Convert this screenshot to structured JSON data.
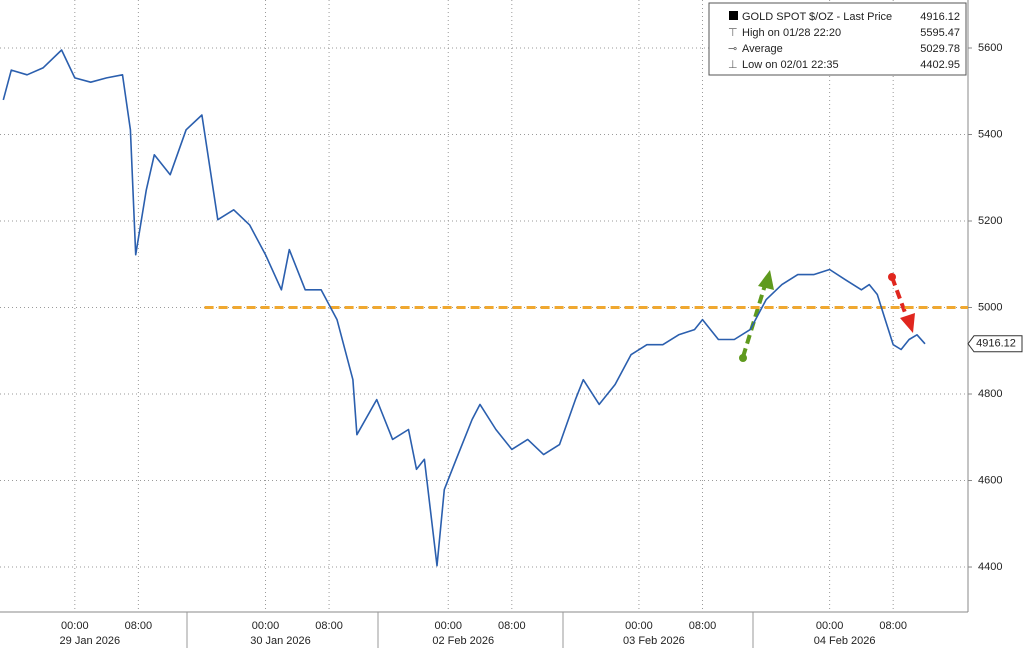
{
  "chart_data": {
    "type": "line",
    "x": [
      "2026-01-28 15:00",
      "2026-01-28 16:00",
      "2026-01-28 18:00",
      "2026-01-28 20:00",
      "2026-01-28 22:20",
      "2026-01-29 00:00",
      "2026-01-29 02:00",
      "2026-01-29 04:00",
      "2026-01-29 06:00",
      "2026-01-29 07:00",
      "2026-01-29 07:40",
      "2026-01-29 09:00",
      "2026-01-29 10:00",
      "2026-01-29 12:00",
      "2026-01-29 14:00",
      "2026-01-29 16:00",
      "2026-01-29 18:00",
      "2026-01-29 20:00",
      "2026-01-29 22:00",
      "2026-01-30 00:00",
      "2026-01-30 02:00",
      "2026-01-30 03:00",
      "2026-01-30 05:00",
      "2026-01-30 07:00",
      "2026-01-30 09:00",
      "2026-01-30 11:00",
      "2026-01-30 11:30",
      "2026-01-30 14:00",
      "2026-01-30 16:00",
      "2026-02-01 19:00",
      "2026-02-01 20:00",
      "2026-02-01 21:00",
      "2026-02-01 22:35",
      "2026-02-01 23:30",
      "2026-02-02 01:00",
      "2026-02-02 03:00",
      "2026-02-02 04:00",
      "2026-02-02 06:00",
      "2026-02-02 08:00",
      "2026-02-02 10:00",
      "2026-02-02 12:00",
      "2026-02-02 14:00",
      "2026-02-02 16:00",
      "2026-02-02 17:00",
      "2026-02-02 19:00",
      "2026-02-02 21:00",
      "2026-02-02 23:00",
      "2026-02-03 01:00",
      "2026-02-03 03:00",
      "2026-02-03 05:00",
      "2026-02-03 07:00",
      "2026-02-03 08:00",
      "2026-02-03 10:00",
      "2026-02-03 12:00",
      "2026-02-03 14:00",
      "2026-02-03 16:00",
      "2026-02-03 18:00",
      "2026-02-03 20:00",
      "2026-02-03 22:00",
      "2026-02-04 00:00",
      "2026-02-04 02:00",
      "2026-02-04 04:00",
      "2026-02-04 05:00",
      "2026-02-04 06:00",
      "2026-02-04 07:00",
      "2026-02-04 08:00",
      "2026-02-04 09:00",
      "2026-02-04 10:00",
      "2026-02-04 11:00",
      "2026-02-04 12:00"
    ],
    "series": [
      {
        "name": "GOLD SPOT $/OZ - Last Price",
        "color": "#2b5fae",
        "values": [
          5480,
          5549,
          5538,
          5554,
          5595.47,
          5531,
          5521,
          5531,
          5538,
          5411,
          5122,
          5272,
          5353,
          5307,
          5411,
          5445,
          5203,
          5226,
          5191,
          5122,
          5041,
          5134,
          5041,
          5041,
          4972,
          4833,
          4706,
          4787,
          4695,
          4718,
          4626,
          4649,
          4402.95,
          4579,
          4649,
          4741,
          4776,
          4718,
          4672,
          4695,
          4660,
          4683,
          4787,
          4833,
          4776,
          4822,
          4891,
          4914,
          4914,
          4937,
          4949,
          4972,
          4926,
          4926,
          4949,
          5018,
          5053,
          5076,
          5076,
          5088,
          5064,
          5041,
          5053,
          5030,
          4972,
          4914,
          4903,
          4926,
          4937,
          4916.12
        ]
      }
    ],
    "xlim": [
      "2026-01-28 14:35",
      "2026-02-04 17:25"
    ],
    "xticks": [
      {
        "value": "2026-01-29 00:00",
        "label": "00:00"
      },
      {
        "value": "2026-01-29 08:00",
        "label": "08:00"
      },
      {
        "value": "2026-01-30 00:00",
        "label": "00:00"
      },
      {
        "value": "2026-01-30 08:00",
        "label": "08:00"
      },
      {
        "value": "2026-02-02 00:00",
        "label": "00:00"
      },
      {
        "value": "2026-02-02 08:00",
        "label": "08:00"
      },
      {
        "value": "2026-02-03 00:00",
        "label": "00:00"
      },
      {
        "value": "2026-02-03 08:00",
        "label": "08:00"
      },
      {
        "value": "2026-02-04 00:00",
        "label": "00:00"
      },
      {
        "value": "2026-02-04 08:00",
        "label": "08:00"
      }
    ],
    "days": [
      {
        "value": "2026-01-29 00:00",
        "label": "29 Jan 2026"
      },
      {
        "value": "2026-01-30 00:00",
        "label": "30 Jan 2026"
      },
      {
        "value": "2026-02-02 00:00",
        "label": "02 Feb 2026"
      },
      {
        "value": "2026-02-03 00:00",
        "label": "03 Feb 2026"
      },
      {
        "value": "2026-02-04 00:00",
        "label": "04 Feb 2026"
      }
    ],
    "ylim": [
      4296,
      5711
    ],
    "yticks": [
      4400,
      4600,
      4800,
      5000,
      5200,
      5400,
      5600
    ],
    "grid": true,
    "reference_line": {
      "value": 5000,
      "from": "2026-01-29 16:20",
      "color": "#f0a830"
    },
    "legend": [
      {
        "label": "GOLD SPOT $/OZ - Last Price",
        "value": "4916.12"
      },
      {
        "label": "High on 01/28 22:20",
        "value": "5595.47"
      },
      {
        "label": "Average",
        "value": "5029.78"
      },
      {
        "label": "Low on 02/01 22:35",
        "value": "4402.95"
      }
    ]
  }
}
